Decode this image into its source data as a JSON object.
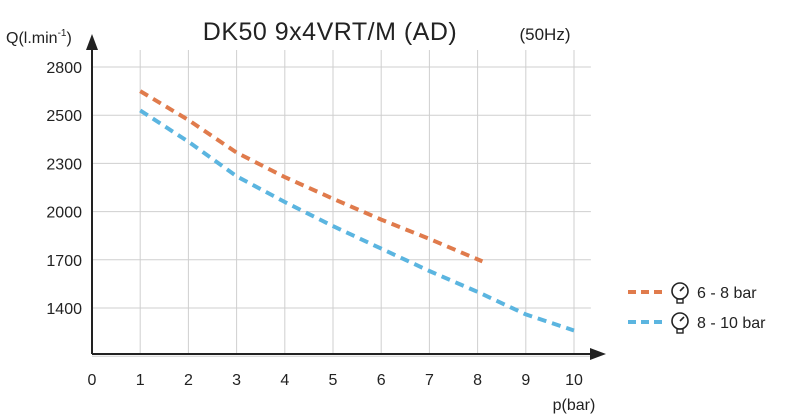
{
  "chart_data": {
    "type": "line",
    "title": "DK50 9x4VRT/M (AD)",
    "subtitle": "(50Hz)",
    "ylabel": "Q(l.min",
    "ylabel_sup": "-1",
    "ylabel_close": ")",
    "xlabel": "p(bar)",
    "x_ticks": [
      "0",
      "1",
      "2",
      "3",
      "4",
      "5",
      "6",
      "7",
      "8",
      "9",
      "10"
    ],
    "y_ticks": [
      "1400",
      "1700",
      "2000",
      "2300",
      "2500",
      "2800"
    ],
    "grid": true,
    "legend_position": "right",
    "series": [
      {
        "name": "6 - 8 bar",
        "color": "#e07b4c",
        "icon": "pressure-gauge-icon",
        "x": [
          1,
          2,
          3,
          4,
          5,
          6,
          7,
          8.1
        ],
        "y": [
          2650,
          2480,
          2345,
          2215,
          2080,
          1950,
          1830,
          1690
        ]
      },
      {
        "name": "8 - 10 bar",
        "color": "#5bb5e0",
        "icon": "pressure-gauge-icon",
        "x": [
          1,
          2,
          3,
          4,
          5,
          6,
          7,
          8,
          9,
          10
        ],
        "y": [
          2530,
          2390,
          2220,
          2060,
          1910,
          1770,
          1630,
          1500,
          1360,
          1260
        ]
      }
    ]
  }
}
